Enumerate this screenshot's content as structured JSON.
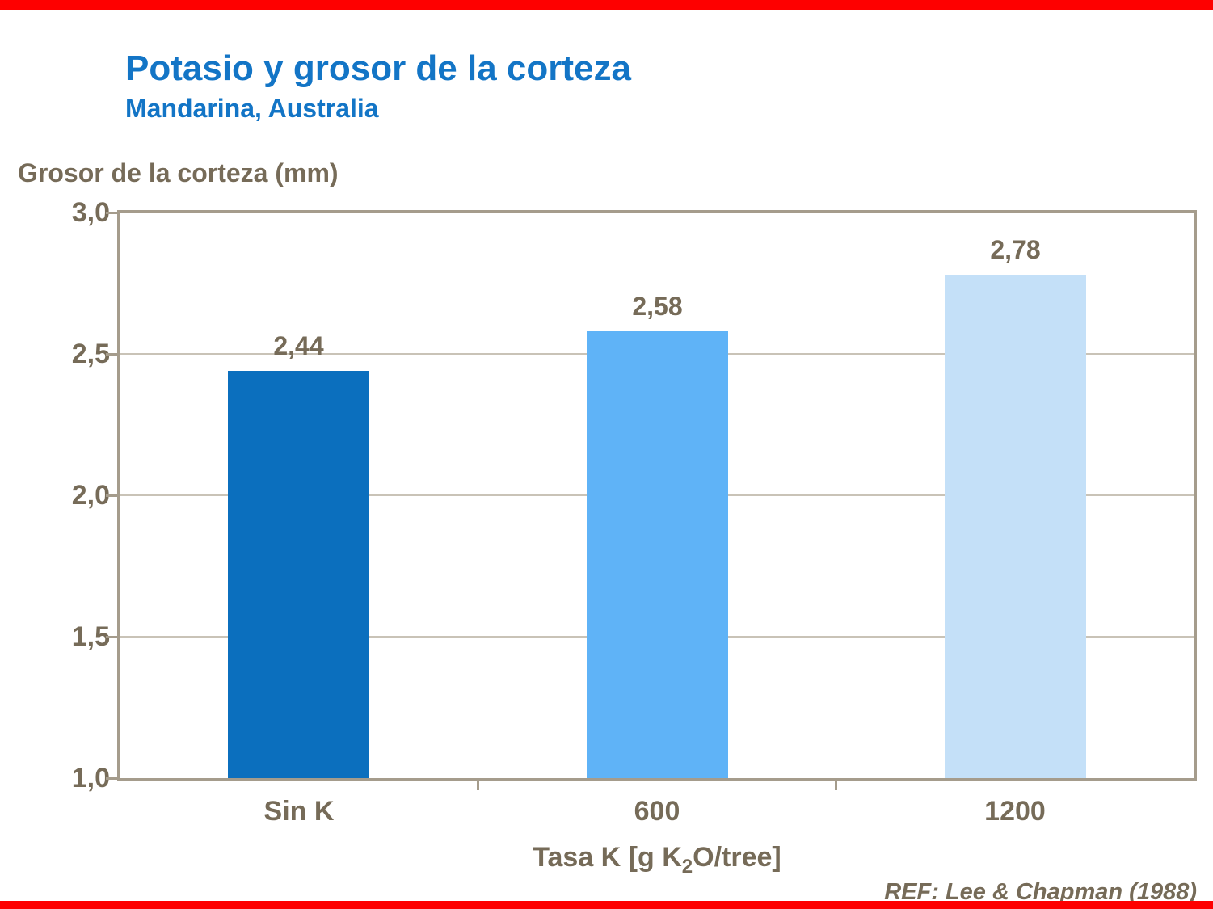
{
  "page": {
    "accent_red": "#FE0000",
    "title": "Potasio y grosor de la corteza",
    "subtitle": "Mandarina, Australia",
    "reference": "REF: Lee & Chapman (1988)"
  },
  "chart_data": {
    "type": "bar",
    "title": "Potasio y grosor de la corteza",
    "subtitle": "Mandarina, Australia",
    "ylabel": "Grosor de la corteza (mm)",
    "xlabel": "Tasa K [g K2O/tree]",
    "xlabel_parts": {
      "pre": "Tasa K [g K",
      "sub": "2",
      "post": "O/tree]"
    },
    "categories": [
      "Sin K",
      "600",
      "1200"
    ],
    "values": [
      2.44,
      2.58,
      2.78
    ],
    "value_labels": [
      "2,44",
      "2,58",
      "2,78"
    ],
    "bar_colors": [
      "#0B6FBE",
      "#5FB3F7",
      "#C4E0F8"
    ],
    "ylim": [
      1.0,
      3.0
    ],
    "yticks": [
      3.0,
      2.5,
      2.0,
      1.5,
      1.0
    ],
    "ytick_labels": [
      "3,0",
      "2,5",
      "2,0",
      "1,5",
      "1,0"
    ],
    "grid": true,
    "legend": false,
    "reference": "REF: Lee & Chapman (1988)"
  }
}
